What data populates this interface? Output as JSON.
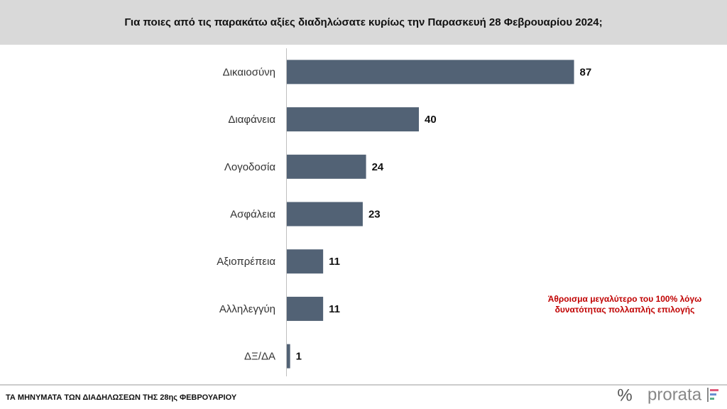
{
  "chart_data": {
    "type": "hbar",
    "title": "Για ποιες από τις παρακάτω αξίες διαδηλώσατε κυρίως την Παρασκευή 28 Φεβρουαρίου 2024;",
    "categories": [
      "Δικαιοσύνη",
      "Διαφάνεια",
      "Λογοδοσία",
      "Ασφάλεια",
      "Αξιοπρέπεια",
      "Αλληλεγγύη",
      "ΔΞ/ΔΑ"
    ],
    "values": [
      87,
      40,
      24,
      23,
      11,
      11,
      1
    ],
    "color": "#526275",
    "xlim": [
      0,
      100
    ],
    "annotation": [
      "Άθροισμα μεγαλύτερο του 100% λόγω",
      "δυνατότητας πολλαπλής επιλογής"
    ]
  },
  "footer": {
    "text": "ΤΑ ΜΗΝΥΜΑΤΑ ΤΩΝ ΔΙΑΔΗΛΩΣΕΩΝ ΤΗΣ 28ης ΦΕΒΡΟΥΑΡΙΟΥ",
    "logo_mark": "%",
    "logo": "prorata"
  }
}
